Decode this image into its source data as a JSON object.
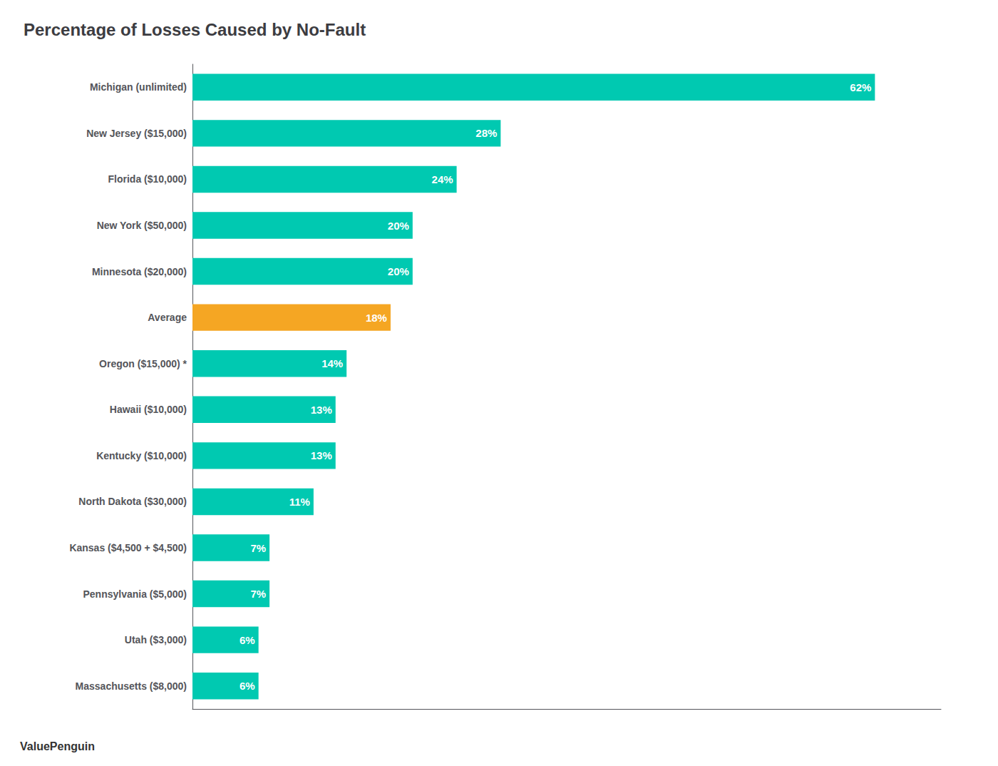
{
  "chart_data": {
    "type": "bar",
    "orientation": "horizontal",
    "title": "Percentage of Losses Caused by No-Fault",
    "annotations": [
      "ValuePenguin"
    ],
    "categories": [
      "Massachusetts ($8,000)",
      "Utah ($3,000)",
      "Pennsylvania ($5,000)",
      "Kansas ($4,500 + $4,500)",
      "North Dakota ($30,000)",
      "Kentucky ($10,000)",
      "Hawaii ($10,000)",
      "Oregon ($15,000) *",
      "Average",
      "Minnesota ($20,000)",
      "New York ($50,000)",
      "Florida ($10,000)",
      "New Jersey ($15,000)",
      "Michigan (unlimited)"
    ],
    "values": [
      6,
      6,
      7,
      7,
      11,
      13,
      13,
      14,
      18,
      20,
      20,
      24,
      28,
      62
    ],
    "value_labels": [
      "6%",
      "6%",
      "7%",
      "7%",
      "11%",
      "13%",
      "13%",
      "14%",
      "18%",
      "20%",
      "20%",
      "24%",
      "28%",
      "62%"
    ],
    "data_labels": true,
    "colors": [
      "#00C9B1",
      "#00C9B1",
      "#00C9B1",
      "#00C9B1",
      "#00C9B1",
      "#00C9B1",
      "#00C9B1",
      "#00C9B1",
      "#F5A623",
      "#00C9B1",
      "#00C9B1",
      "#00C9B1",
      "#00C9B1",
      "#00C9B1"
    ],
    "xlim": [
      0,
      68
    ],
    "grid": false,
    "tick_labels": "y"
  }
}
